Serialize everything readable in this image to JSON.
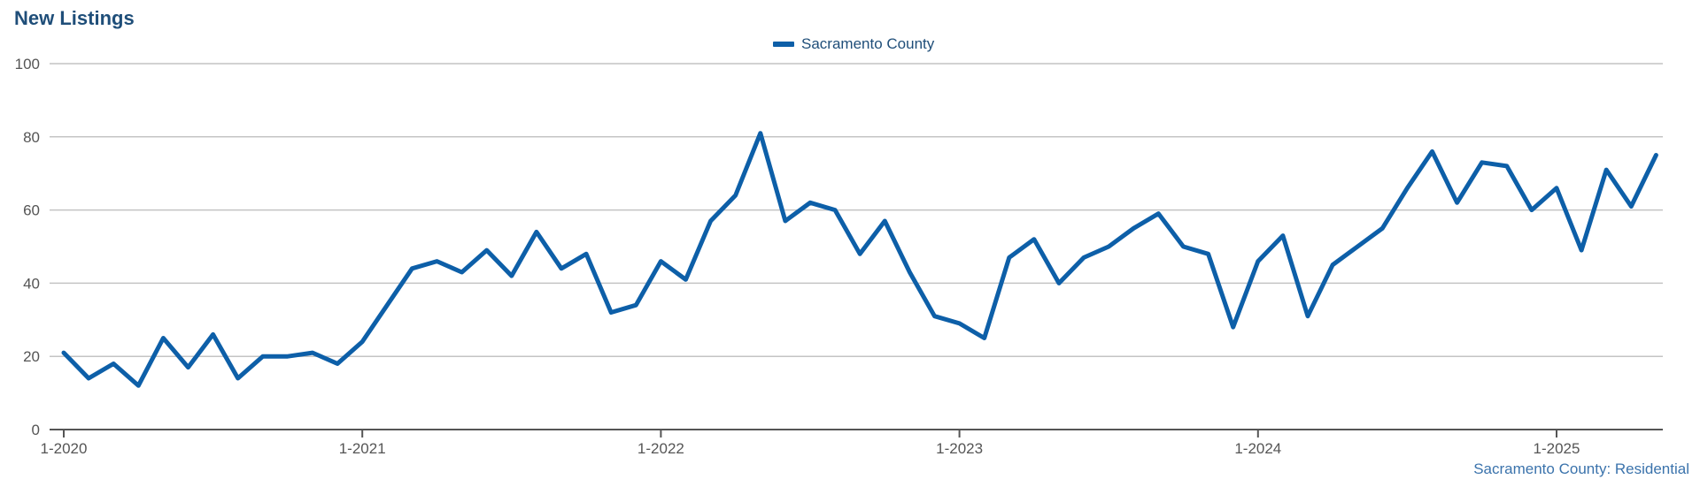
{
  "chart_title": "New Listings",
  "legend": {
    "series_label": "Sacramento County"
  },
  "source_note": "Sacramento County: Residential",
  "colors": {
    "series": "#0d5fa8",
    "grid": "#c4c4c4",
    "axis": "#555555",
    "title": "#1f4e79"
  },
  "chart_data": {
    "type": "line",
    "title": "New Listings",
    "xlabel": "",
    "ylabel": "",
    "ylim": [
      0,
      100
    ],
    "y_ticks": [
      0,
      20,
      40,
      60,
      80,
      100
    ],
    "x_tick_labels": [
      "1-2020",
      "1-2021",
      "1-2022",
      "1-2023",
      "1-2024",
      "1-2025"
    ],
    "x_start": "2020-01",
    "grid": true,
    "legend_position": "top-center",
    "series": [
      {
        "name": "Sacramento County",
        "values": [
          21,
          14,
          18,
          12,
          25,
          17,
          26,
          14,
          20,
          20,
          21,
          18,
          24,
          34,
          44,
          46,
          43,
          49,
          42,
          54,
          44,
          48,
          32,
          34,
          46,
          41,
          57,
          64,
          81,
          57,
          62,
          60,
          48,
          57,
          43,
          31,
          29,
          25,
          47,
          52,
          40,
          47,
          50,
          55,
          59,
          50,
          48,
          28,
          46,
          53,
          31,
          45,
          50,
          55,
          66,
          76,
          62,
          73,
          72,
          60,
          66,
          49,
          71,
          61,
          75
        ]
      }
    ]
  }
}
